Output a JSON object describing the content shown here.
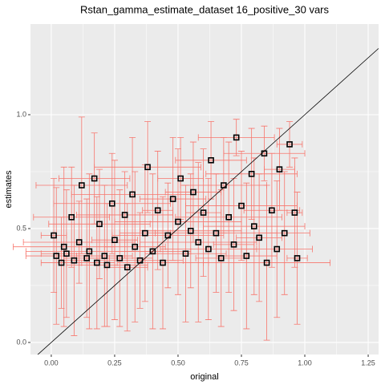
{
  "chart_data": {
    "type": "scatter",
    "title": "Rstan_gamma_estimate_dataset 16_positive_30 vars",
    "x_label": "original",
    "y_label": "estimates",
    "xlim": [
      -0.082,
      1.291
    ],
    "ylim": [
      -0.053,
      1.398
    ],
    "xticks": [
      {
        "value": 0,
        "label": "0.00"
      },
      {
        "value": 0.25,
        "label": "0.25"
      },
      {
        "value": 0.5,
        "label": "0.50"
      },
      {
        "value": 0.75,
        "label": "0.75"
      },
      {
        "value": 1,
        "label": "1.00"
      },
      {
        "value": 1.25,
        "label": "1.25"
      }
    ],
    "yticks": [
      {
        "value": 0,
        "label": "0.0"
      },
      {
        "value": 0.5,
        "label": "0.5"
      },
      {
        "value": 1,
        "label": "1.0"
      }
    ],
    "grid": true,
    "point_color": "#000000",
    "error_color": "#f8766d",
    "abline": {
      "intercept": 0,
      "slope": 1,
      "color": "#000000"
    },
    "x": [
      0.01,
      0.02,
      0.04,
      0.05,
      0.06,
      0.08,
      0.09,
      0.11,
      0.12,
      0.14,
      0.15,
      0.17,
      0.18,
      0.19,
      0.21,
      0.22,
      0.24,
      0.25,
      0.27,
      0.29,
      0.3,
      0.32,
      0.33,
      0.35,
      0.37,
      0.38,
      0.4,
      0.42,
      0.44,
      0.46,
      0.48,
      0.5,
      0.51,
      0.53,
      0.55,
      0.56,
      0.58,
      0.6,
      0.62,
      0.63,
      0.65,
      0.67,
      0.68,
      0.7,
      0.72,
      0.73,
      0.75,
      0.77,
      0.79,
      0.8,
      0.82,
      0.84,
      0.85,
      0.87,
      0.89,
      0.9,
      0.92,
      0.94,
      0.96,
      0.97
    ],
    "y": [
      0.47,
      0.38,
      0.35,
      0.42,
      0.39,
      0.55,
      0.36,
      0.44,
      0.69,
      0.37,
      0.4,
      0.72,
      0.35,
      0.52,
      0.38,
      0.34,
      0.61,
      0.45,
      0.37,
      0.56,
      0.33,
      0.65,
      0.42,
      0.36,
      0.48,
      0.77,
      0.4,
      0.58,
      0.35,
      0.47,
      0.63,
      0.53,
      0.72,
      0.39,
      0.49,
      0.66,
      0.44,
      0.57,
      0.41,
      0.8,
      0.48,
      0.37,
      0.69,
      0.55,
      0.43,
      0.9,
      0.6,
      0.38,
      0.74,
      0.51,
      0.46,
      0.83,
      0.35,
      0.58,
      0.41,
      0.76,
      0.48,
      0.87,
      0.57,
      0.37
    ],
    "x_error": [
      0.05,
      0.12,
      0.08,
      0.2,
      0.1,
      0.15,
      0.06,
      0.22,
      0.18,
      0.09,
      0.25,
      0.14,
      0.07,
      0.2,
      0.11,
      0.16,
      0.23,
      0.09,
      0.13,
      0.19,
      0.08,
      0.24,
      0.12,
      0.17,
      0.1,
      0.21,
      0.15,
      0.06,
      0.18,
      0.22,
      0.13,
      0.25,
      0.09,
      0.16,
      0.2,
      0.11,
      0.23,
      0.07,
      0.19,
      0.14,
      0.24,
      0.1,
      0.17,
      0.21,
      0.08,
      0.15,
      0.22,
      0.12,
      0.18,
      0.2,
      0.09,
      0.16,
      0.25,
      0.11,
      0.14,
      0.06,
      0.1,
      0.05,
      0.03,
      0.04
    ],
    "y_error": [
      0.25,
      0.3,
      0.2,
      0.35,
      0.28,
      0.22,
      0.33,
      0.18,
      0.3,
      0.26,
      0.34,
      0.2,
      0.29,
      0.24,
      0.31,
      0.27,
      0.22,
      0.35,
      0.3,
      0.19,
      0.28,
      0.25,
      0.33,
      0.21,
      0.3,
      0.2,
      0.34,
      0.26,
      0.29,
      0.23,
      0.27,
      0.32,
      0.18,
      0.3,
      0.25,
      0.22,
      0.35,
      0.28,
      0.31,
      0.17,
      0.26,
      0.3,
      0.21,
      0.33,
      0.29,
      0.08,
      0.24,
      0.32,
      0.2,
      0.3,
      0.28,
      0.12,
      0.34,
      0.25,
      0.3,
      0.18,
      0.27,
      0.1,
      0.24,
      0.29
    ]
  }
}
